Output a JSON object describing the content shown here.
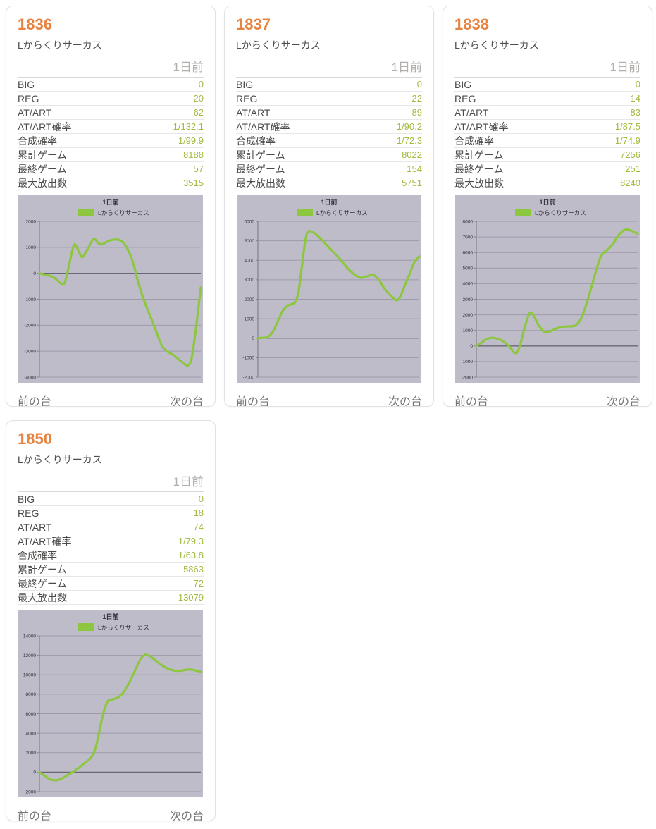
{
  "page": {
    "background": "#ffffff"
  },
  "card": {
    "day_label": "1日前",
    "prev_label": "前の台",
    "next_label": "次の台",
    "row_labels": [
      "BIG",
      "REG",
      "AT/ART",
      "AT/ART確率",
      "合成確率",
      "累計ゲーム",
      "最終ゲーム",
      "最大放出数"
    ]
  },
  "colors": {
    "accent_orange": "#e8823f",
    "value_green": "#9fba3d",
    "line_green": "#8dc63f",
    "chart_bg": "#bfbcc9",
    "grid_line": "#9d9aaa",
    "zero_line": "#6b6875",
    "axis_line": "#82808d",
    "chart_text": "#35333b"
  },
  "machines": [
    {
      "id": "1836",
      "name": "Lからくりサーカス",
      "values": [
        "0",
        "20",
        "62",
        "1/132.1",
        "1/99.9",
        "8188",
        "57",
        "3515"
      ]
    },
    {
      "id": "1837",
      "name": "Lからくりサーカス",
      "values": [
        "0",
        "22",
        "89",
        "1/90.2",
        "1/72.3",
        "8022",
        "154",
        "5751"
      ]
    },
    {
      "id": "1838",
      "name": "Lからくりサーカス",
      "values": [
        "0",
        "14",
        "83",
        "1/87.5",
        "1/74.9",
        "7256",
        "251",
        "8240"
      ]
    },
    {
      "id": "1850",
      "name": "Lからくりサーカス",
      "values": [
        "0",
        "18",
        "74",
        "1/79.3",
        "1/63.8",
        "5863",
        "72",
        "13079"
      ]
    }
  ],
  "chart_data": [
    {
      "type": "line",
      "title": "1日前",
      "legend": "Lからくりサーカス",
      "xlabel": "",
      "ylabel": "",
      "ylim": [
        -4000,
        2000
      ],
      "ytick_step": 1000,
      "grid": true,
      "legend_position": "top",
      "series": [
        {
          "name": "Lからくりサーカス",
          "points": [
            [
              0,
              0
            ],
            [
              0.04,
              -60
            ],
            [
              0.08,
              -130
            ],
            [
              0.11,
              -260
            ],
            [
              0.14,
              -430
            ],
            [
              0.16,
              -300
            ],
            [
              0.19,
              500
            ],
            [
              0.215,
              1100
            ],
            [
              0.24,
              900
            ],
            [
              0.265,
              620
            ],
            [
              0.3,
              950
            ],
            [
              0.335,
              1320
            ],
            [
              0.365,
              1160
            ],
            [
              0.39,
              1120
            ],
            [
              0.43,
              1250
            ],
            [
              0.465,
              1300
            ],
            [
              0.5,
              1270
            ],
            [
              0.53,
              1100
            ],
            [
              0.56,
              750
            ],
            [
              0.585,
              300
            ],
            [
              0.61,
              -300
            ],
            [
              0.64,
              -900
            ],
            [
              0.67,
              -1400
            ],
            [
              0.7,
              -1850
            ],
            [
              0.73,
              -2350
            ],
            [
              0.76,
              -2800
            ],
            [
              0.79,
              -3000
            ],
            [
              0.83,
              -3150
            ],
            [
              0.87,
              -3350
            ],
            [
              0.9,
              -3500
            ],
            [
              0.92,
              -3550
            ],
            [
              0.94,
              -3350
            ],
            [
              0.96,
              -2600
            ],
            [
              0.98,
              -1600
            ],
            [
              1,
              -550
            ]
          ]
        }
      ]
    },
    {
      "type": "line",
      "title": "1日前",
      "legend": "Lからくりサーカス",
      "xlabel": "",
      "ylabel": "",
      "ylim": [
        -2000,
        6000
      ],
      "ytick_step": 1000,
      "grid": true,
      "legend_position": "top",
      "series": [
        {
          "name": "Lからくりサーカス",
          "points": [
            [
              0,
              0
            ],
            [
              0.03,
              20
            ],
            [
              0.06,
              60
            ],
            [
              0.09,
              300
            ],
            [
              0.12,
              800
            ],
            [
              0.15,
              1350
            ],
            [
              0.18,
              1650
            ],
            [
              0.21,
              1750
            ],
            [
              0.23,
              1850
            ],
            [
              0.25,
              2300
            ],
            [
              0.27,
              3500
            ],
            [
              0.29,
              4800
            ],
            [
              0.305,
              5400
            ],
            [
              0.32,
              5500
            ],
            [
              0.35,
              5400
            ],
            [
              0.39,
              5100
            ],
            [
              0.43,
              4750
            ],
            [
              0.47,
              4400
            ],
            [
              0.51,
              4050
            ],
            [
              0.55,
              3650
            ],
            [
              0.58,
              3400
            ],
            [
              0.61,
              3200
            ],
            [
              0.64,
              3100
            ],
            [
              0.67,
              3150
            ],
            [
              0.7,
              3250
            ],
            [
              0.72,
              3230
            ],
            [
              0.75,
              3000
            ],
            [
              0.78,
              2600
            ],
            [
              0.81,
              2300
            ],
            [
              0.84,
              2050
            ],
            [
              0.86,
              1950
            ],
            [
              0.88,
              2100
            ],
            [
              0.91,
              2700
            ],
            [
              0.94,
              3300
            ],
            [
              0.97,
              3900
            ],
            [
              1,
              4200
            ]
          ]
        }
      ]
    },
    {
      "type": "line",
      "title": "1日前",
      "legend": "Lからくりサーカス",
      "xlabel": "",
      "ylabel": "",
      "ylim": [
        -2000,
        8000
      ],
      "ytick_step": 1000,
      "grid": true,
      "legend_position": "top",
      "series": [
        {
          "name": "Lからくりサーカス",
          "points": [
            [
              0,
              0
            ],
            [
              0.03,
              200
            ],
            [
              0.06,
              420
            ],
            [
              0.09,
              520
            ],
            [
              0.12,
              500
            ],
            [
              0.15,
              400
            ],
            [
              0.18,
              200
            ],
            [
              0.21,
              -100
            ],
            [
              0.235,
              -430
            ],
            [
              0.255,
              -380
            ],
            [
              0.275,
              200
            ],
            [
              0.3,
              1200
            ],
            [
              0.325,
              2000
            ],
            [
              0.34,
              2150
            ],
            [
              0.36,
              1850
            ],
            [
              0.385,
              1350
            ],
            [
              0.41,
              1000
            ],
            [
              0.435,
              880
            ],
            [
              0.46,
              950
            ],
            [
              0.49,
              1100
            ],
            [
              0.52,
              1200
            ],
            [
              0.55,
              1250
            ],
            [
              0.58,
              1260
            ],
            [
              0.61,
              1300
            ],
            [
              0.64,
              1600
            ],
            [
              0.67,
              2300
            ],
            [
              0.7,
              3300
            ],
            [
              0.73,
              4400
            ],
            [
              0.75,
              5100
            ],
            [
              0.77,
              5700
            ],
            [
              0.79,
              6000
            ],
            [
              0.82,
              6250
            ],
            [
              0.85,
              6600
            ],
            [
              0.88,
              7100
            ],
            [
              0.91,
              7400
            ],
            [
              0.93,
              7480
            ],
            [
              0.96,
              7400
            ],
            [
              1,
              7200
            ]
          ]
        }
      ]
    },
    {
      "type": "line",
      "title": "1日前",
      "legend": "Lからくりサーカス",
      "xlabel": "",
      "ylabel": "",
      "ylim": [
        -2000,
        14000
      ],
      "ytick_step": 2000,
      "grid": true,
      "legend_position": "top",
      "series": [
        {
          "name": "Lからくりサーカス",
          "points": [
            [
              0,
              0
            ],
            [
              0.03,
              -350
            ],
            [
              0.06,
              -700
            ],
            [
              0.09,
              -830
            ],
            [
              0.12,
              -780
            ],
            [
              0.15,
              -550
            ],
            [
              0.18,
              -250
            ],
            [
              0.21,
              50
            ],
            [
              0.24,
              400
            ],
            [
              0.27,
              800
            ],
            [
              0.3,
              1200
            ],
            [
              0.32,
              1500
            ],
            [
              0.34,
              2100
            ],
            [
              0.36,
              3300
            ],
            [
              0.38,
              4900
            ],
            [
              0.4,
              6300
            ],
            [
              0.42,
              7200
            ],
            [
              0.44,
              7450
            ],
            [
              0.46,
              7500
            ],
            [
              0.49,
              7700
            ],
            [
              0.52,
              8200
            ],
            [
              0.55,
              9000
            ],
            [
              0.58,
              10000
            ],
            [
              0.61,
              11100
            ],
            [
              0.63,
              11700
            ],
            [
              0.655,
              12050
            ],
            [
              0.68,
              11950
            ],
            [
              0.71,
              11600
            ],
            [
              0.74,
              11200
            ],
            [
              0.77,
              10850
            ],
            [
              0.8,
              10600
            ],
            [
              0.83,
              10450
            ],
            [
              0.86,
              10400
            ],
            [
              0.89,
              10450
            ],
            [
              0.92,
              10550
            ],
            [
              0.95,
              10500
            ],
            [
              0.98,
              10400
            ],
            [
              1,
              10300
            ]
          ]
        }
      ]
    }
  ]
}
